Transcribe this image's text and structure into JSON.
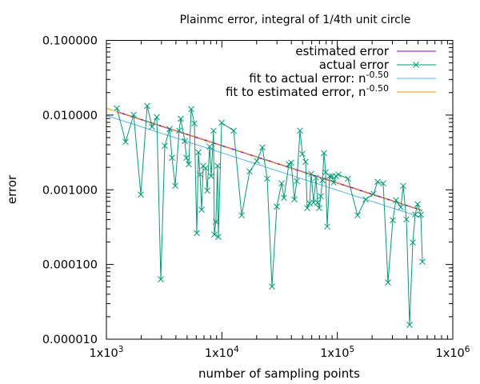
{
  "chart_data": {
    "type": "line",
    "title": "Plainmc error, integral of 1/4th unit circle",
    "xlabel": "number of sampling points",
    "ylabel": "error",
    "xscale": "log",
    "yscale": "log",
    "xlim": [
      1000,
      1000000
    ],
    "ylim": [
      1e-05,
      0.1
    ],
    "grid": false,
    "legend_position": "top-right",
    "x_ticks": [
      {
        "value": 1000,
        "base": "1x10",
        "exp": "3"
      },
      {
        "value": 10000,
        "base": "1x10",
        "exp": "4"
      },
      {
        "value": 100000,
        "base": "1x10",
        "exp": "5"
      },
      {
        "value": 1000000,
        "base": "1x10",
        "exp": "6"
      }
    ],
    "y_ticks": [
      {
        "value": 0.1,
        "label": "0.100000"
      },
      {
        "value": 0.01,
        "label": "0.010000"
      },
      {
        "value": 0.001,
        "label": "0.001000"
      },
      {
        "value": 0.0001,
        "label": "0.000100"
      },
      {
        "value": 1e-05,
        "label": "0.000010"
      }
    ],
    "legend": [
      {
        "label": "estimated error",
        "sup": "",
        "color": "#9400d3",
        "marker": "none"
      },
      {
        "label": "actual error",
        "sup": "",
        "color": "#009e73",
        "marker": "x"
      },
      {
        "label": "fit to actual error: n",
        "sup": "-0.50",
        "color": "#56b4e9",
        "marker": "none"
      },
      {
        "label": "fit to estimated error, n",
        "sup": "-0.50",
        "color": "#e69f00",
        "marker": "none"
      }
    ],
    "x": [
      1231,
      1466,
      1722,
      1986,
      2255,
      2482,
      2733,
      2960,
      3206,
      3526,
      3700,
      3944,
      4267,
      4406,
      4774,
      4929,
      5171,
      5425,
      5781,
      6067,
      6265,
      6469,
      6680,
      6897,
      7229,
      7465,
      7825,
      8079,
      8468,
      8608,
      8888,
      9177,
      9326,
      9954,
      12650,
      14840,
      17390,
      20070,
      22450,
      24700,
      27180,
      29900,
      32900,
      34520,
      38000,
      39840,
      42460,
      44550,
      47490,
      49790,
      53070,
      54810,
      57540,
      59420,
      62260,
      65320,
      67450,
      69640,
      71910,
      74260,
      76680,
      79170,
      81750,
      85700,
      89900,
      92800,
      97300,
      102100,
      123600,
      149800,
      175800,
      206200,
      223300,
      249600,
      274700,
      302200,
      322300,
      354500,
      371800,
      396300,
      422600,
      450600,
      472400,
      495500,
      528500,
      545700
    ],
    "series": [
      {
        "name": "estimated error",
        "color": "#9400d3",
        "formula": "c * n^-0.5",
        "coefficient": 0.39
      },
      {
        "name": "actual error",
        "color": "#009e73",
        "values": [
          0.01233,
          0.00439,
          0.0101,
          0.000863,
          0.01327,
          0.007,
          0.0094,
          6.34e-05,
          0.00388,
          0.0065,
          0.00268,
          0.00113,
          0.00619,
          0.00895,
          0.00449,
          0.00268,
          0.0022,
          0.01202,
          0.00773,
          0.000264,
          0.00318,
          0.0016,
          0.000541,
          0.00209,
          0.00195,
          0.000975,
          0.00378,
          0.00152,
          0.00619,
          0.000252,
          0.000373,
          0.00209,
          0.000234,
          0.00791,
          0.00619,
          0.000455,
          0.00176,
          0.00243,
          0.00369,
          0.00141,
          5.08e-05,
          0.000596,
          0.00122,
          0.000781,
          0.0022,
          0.00231,
          0.000744,
          0.00131,
          0.00619,
          0.00303,
          0.00237,
          0.000568,
          0.000658,
          0.00164,
          0.000675,
          0.00145,
          0.000675,
          0.000568,
          0.000821,
          0.00134,
          0.0031,
          0.00172,
          0.000322,
          0.00152,
          0.00152,
          0.00125,
          0.00152,
          0.0016,
          0.00141,
          0.000455,
          0.000744,
          0.000885,
          0.00128,
          0.00122,
          5.74e-05,
          0.000392,
          0.000726,
          0.000582,
          0.00113,
          0.000402,
          1.56e-05,
          0.000197,
          0.000466,
          0.000642,
          0.000466,
          0.000109
        ]
      },
      {
        "name": "fit to actual error",
        "color": "#56b4e9",
        "formula": "c * n^-0.5",
        "coefficient": 0.3125,
        "exponent": -0.5,
        "range": [
          1000,
          545700
        ]
      },
      {
        "name": "fit to estimated error",
        "color": "#e69f00",
        "formula": "c * n^-0.5",
        "coefficient": 0.39,
        "exponent": -0.5,
        "range": [
          1000,
          545700
        ]
      }
    ]
  }
}
